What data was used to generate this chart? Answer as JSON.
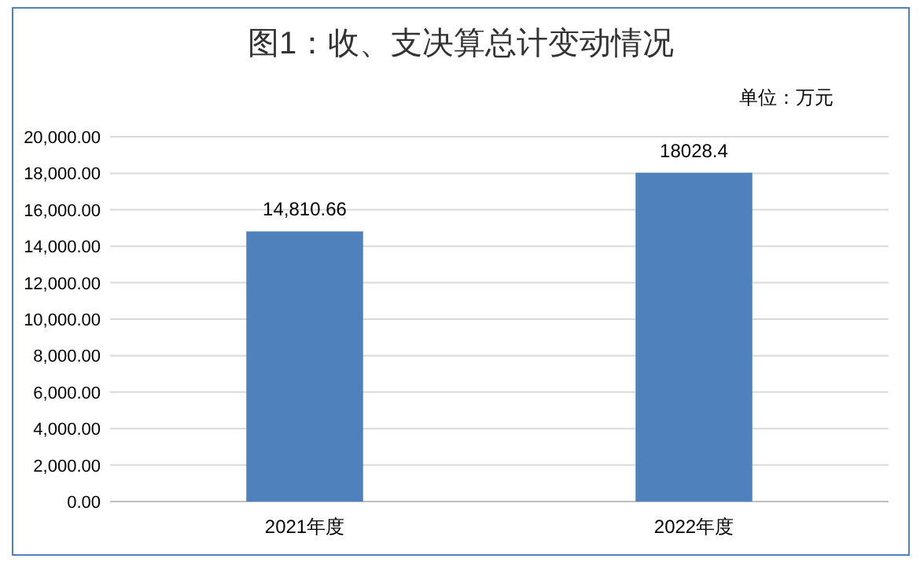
{
  "chart_data": {
    "type": "bar",
    "title": "图1：收、支决算总计变动情况",
    "annotations": [
      "单位：万元"
    ],
    "categories": [
      "2021年度",
      "2022年度"
    ],
    "values": [
      14810.66,
      18028.4
    ],
    "value_labels": [
      "14,810.66",
      "18028.4"
    ],
    "color": "#4f81bd",
    "ylim": [
      0,
      20000
    ],
    "yticks": [
      {
        "value": 0,
        "label": "0.00"
      },
      {
        "value": 2000,
        "label": "2,000.00"
      },
      {
        "value": 4000,
        "label": "4,000.00"
      },
      {
        "value": 6000,
        "label": "6,000.00"
      },
      {
        "value": 8000,
        "label": "8,000.00"
      },
      {
        "value": 10000,
        "label": "10,000.00"
      },
      {
        "value": 12000,
        "label": "12,000.00"
      },
      {
        "value": 14000,
        "label": "14,000.00"
      },
      {
        "value": 16000,
        "label": "16,000.00"
      },
      {
        "value": 18000,
        "label": "18,000.00"
      },
      {
        "value": 20000,
        "label": "20,000.00"
      }
    ],
    "grid": "y"
  }
}
